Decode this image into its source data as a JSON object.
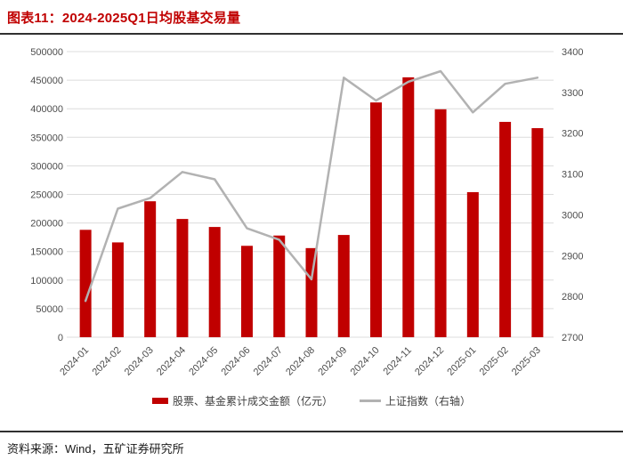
{
  "header": {
    "title": "图表11：2024-2025Q1日均股基交易量"
  },
  "footer": {
    "source": "资料来源：Wind，五矿证券研究所"
  },
  "colors": {
    "title_red": "#C00000",
    "bar_red": "#C00000",
    "line_gray": "#B2B2B2",
    "grid_gray": "#DCDCDC",
    "axis_text_gray": "#4D4D4D",
    "rule_dark": "#303030"
  },
  "chart_data": {
    "type": "bar",
    "subtype": "bar+line combo with dual y-axes",
    "title": "图表11：2024-2025Q1日均股基交易量",
    "categories": [
      "2024-01",
      "2024-02",
      "2024-03",
      "2024-04",
      "2024-05",
      "2024-06",
      "2024-07",
      "2024-08",
      "2024-09",
      "2024-10",
      "2024-11",
      "2024-12",
      "2025-01",
      "2025-02",
      "2025-03"
    ],
    "series": [
      {
        "name": "股票、基金累计成交金额（亿元）",
        "type": "bar",
        "axis": "left",
        "color": "#C00000",
        "values": [
          188000,
          166000,
          238000,
          207000,
          193000,
          160000,
          178000,
          156000,
          179000,
          411000,
          455000,
          399000,
          254000,
          377000,
          366000
        ]
      },
      {
        "name": "上证指数（右轴）",
        "type": "line",
        "axis": "right",
        "color": "#B2B2B2",
        "values": [
          2789,
          3015,
          3041,
          3105,
          3087,
          2967,
          2939,
          2842,
          3336,
          3280,
          3326,
          3352,
          3251,
          3321,
          3336
        ]
      }
    ],
    "left_axis": {
      "min": 0,
      "max": 500000,
      "step": 50000,
      "ticks": [
        "0",
        "50000",
        "100000",
        "150000",
        "200000",
        "250000",
        "300000",
        "350000",
        "400000",
        "450000",
        "500000"
      ]
    },
    "right_axis": {
      "min": 2700,
      "max": 3400,
      "step": 100,
      "ticks": [
        "2700",
        "2800",
        "2900",
        "3000",
        "3100",
        "3200",
        "3300",
        "3400"
      ]
    },
    "grid": true,
    "legend_position": "bottom"
  }
}
